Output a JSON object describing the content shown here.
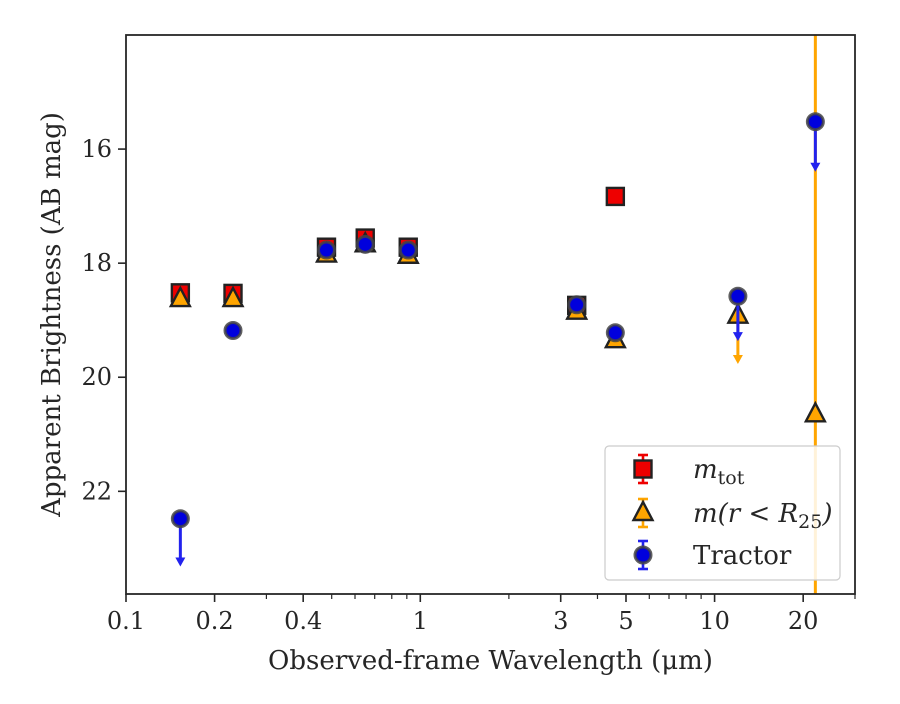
{
  "chart_data": {
    "type": "scatter",
    "xscale": "log",
    "xlabel": "Observed-frame Wavelength (μm)",
    "ylabel": "Apparent Brightness (AB mag)",
    "xlim": [
      0.1,
      30
    ],
    "ylim": [
      23.8,
      14.0
    ],
    "y_inverted": true,
    "grid": false,
    "legend_position": "lower right",
    "x_ticks": [
      {
        "value": 0.1,
        "label": "0.1"
      },
      {
        "value": 0.2,
        "label": "0.2"
      },
      {
        "value": 0.4,
        "label": "0.4"
      },
      {
        "value": 1,
        "label": "1"
      },
      {
        "value": 3,
        "label": "3"
      },
      {
        "value": 5,
        "label": "5"
      },
      {
        "value": 10,
        "label": "10"
      },
      {
        "value": 20,
        "label": "20"
      }
    ],
    "y_ticks": [
      {
        "value": 16,
        "label": "16"
      },
      {
        "value": 18,
        "label": "18"
      },
      {
        "value": 20,
        "label": "20"
      },
      {
        "value": 22,
        "label": "22"
      }
    ],
    "vertical_line": {
      "x": 22.0,
      "color": "#ffa500"
    },
    "series": [
      {
        "name": "m_tot",
        "label_main": "m",
        "label_sub": "tot",
        "marker": "square",
        "fill": "#ee0000",
        "errcolor": "#ee0000",
        "points": [
          {
            "x": 0.153,
            "y": 18.52
          },
          {
            "x": 0.231,
            "y": 18.53
          },
          {
            "x": 0.48,
            "y": 17.72
          },
          {
            "x": 0.65,
            "y": 17.56
          },
          {
            "x": 0.91,
            "y": 17.72
          },
          {
            "x": 3.4,
            "y": 18.74
          },
          {
            "x": 4.6,
            "y": 16.83
          }
        ]
      },
      {
        "name": "m(r<R25)",
        "label_main": "m(r < R",
        "label_sub": "25",
        "label_end": ")",
        "marker": "triangle",
        "fill": "#ffa500",
        "errcolor": "#ffa500",
        "points": [
          {
            "x": 0.153,
            "y": 18.63
          },
          {
            "x": 0.231,
            "y": 18.63
          },
          {
            "x": 0.48,
            "y": 17.85
          },
          {
            "x": 0.65,
            "y": 17.67
          },
          {
            "x": 0.91,
            "y": 17.87
          },
          {
            "x": 3.4,
            "y": 18.85
          },
          {
            "x": 4.6,
            "y": 19.35
          },
          {
            "x": 12.0,
            "y": 18.92,
            "upper_limit_to": 19.75
          },
          {
            "x": 22.0,
            "y": 20.65
          }
        ]
      },
      {
        "name": "Tractor",
        "label_main": "Tractor",
        "marker": "circle",
        "fill": "#0000dd",
        "errcolor": "#2222ee",
        "points": [
          {
            "x": 0.153,
            "y": 22.48,
            "upper_limit_to": 23.3
          },
          {
            "x": 0.231,
            "y": 19.18
          },
          {
            "x": 0.48,
            "y": 17.77
          },
          {
            "x": 0.65,
            "y": 17.67
          },
          {
            "x": 0.91,
            "y": 17.77
          },
          {
            "x": 3.4,
            "y": 18.73
          },
          {
            "x": 4.6,
            "y": 19.22
          },
          {
            "x": 12.0,
            "y": 18.58,
            "upper_limit_to": 19.35
          },
          {
            "x": 22.0,
            "y": 15.52,
            "upper_limit_to": 16.38
          }
        ]
      }
    ]
  }
}
